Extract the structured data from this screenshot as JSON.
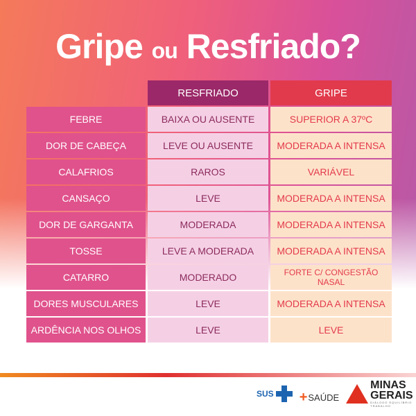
{
  "title": {
    "main": "Gripe",
    "ou": "ou",
    "rest": "Resfriado?"
  },
  "headers": [
    "RESFRIADO",
    "GRIPE"
  ],
  "rows": [
    {
      "symptom": "FEBRE",
      "resfriado": "BAIXA OU AUSENTE",
      "gripe": "SUPERIOR A 37ºC"
    },
    {
      "symptom": "DOR DE CABEÇA",
      "resfriado": "LEVE OU AUSENTE",
      "gripe": "MODERADA A INTENSA"
    },
    {
      "symptom": "CALAFRIOS",
      "resfriado": "RAROS",
      "gripe": "VARIÁVEL"
    },
    {
      "symptom": "CANSAÇO",
      "resfriado": "LEVE",
      "gripe": "MODERADA A INTENSA"
    },
    {
      "symptom": "DOR DE GARGANTA",
      "resfriado": "MODERADA",
      "gripe": "MODERADA A INTENSA"
    },
    {
      "symptom": "TOSSE",
      "resfriado": "LEVE A MODERADA",
      "gripe": "MODERADA A INTENSA"
    },
    {
      "symptom": "CATARRO",
      "resfriado": "MODERADO",
      "gripe": "FORTE C/ CONGESTÃO NASAL"
    },
    {
      "symptom": "DORES MUSCULARES",
      "resfriado": "LEVE",
      "gripe": "MODERADA A INTENSA"
    },
    {
      "symptom": "ARDÊNCIA NOS OLHOS",
      "resfriado": "LEVE",
      "gripe": "LEVE"
    }
  ],
  "footer": {
    "sus": "SUS",
    "saude": "SAÚDE",
    "mg_line1": "MINAS",
    "mg_line2": "GERAIS",
    "mg_tagline": "DIÁLOGO  EQUILÍBRIO  TRABALHO"
  },
  "colors": {
    "symptom": "#e0528c",
    "resfriado_header": "#9b2868",
    "gripe_header": "#e13a4c",
    "resfriado_cell": "#f5d0e5",
    "gripe_cell": "#fde2ca"
  }
}
